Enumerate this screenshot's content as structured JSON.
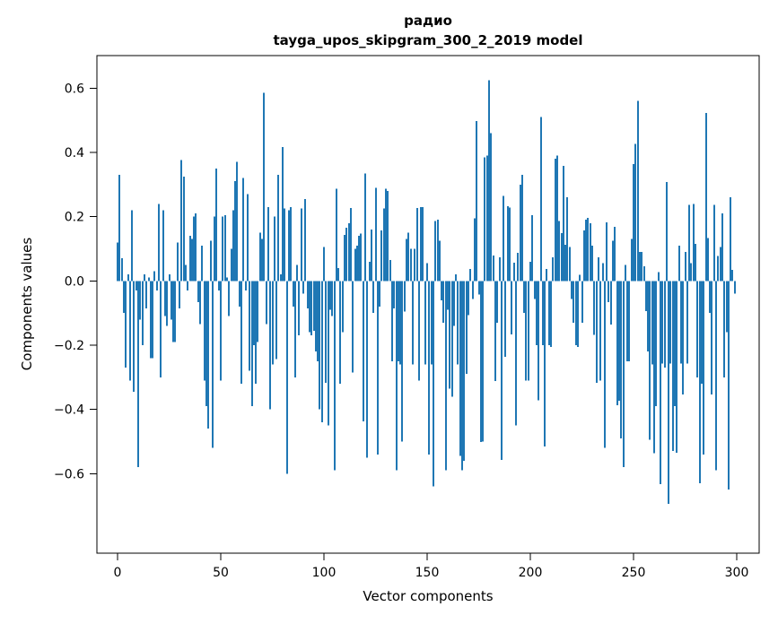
{
  "figure": {
    "title_line1": "радио",
    "title_line2": "tayga_upos_skipgram_300_2_2019 model",
    "xlabel": "Vector components",
    "ylabel": "Components values"
  },
  "chart_data": {
    "type": "bar",
    "title": "радио — tayga_upos_skipgram_300_2_2019 model",
    "xlabel": "Vector components",
    "ylabel": "Components values",
    "x_ticks": [
      0,
      50,
      100,
      150,
      200,
      250,
      300
    ],
    "y_ticks": [
      0.6,
      0.4,
      0.2,
      0.0,
      -0.2,
      -0.4,
      -0.6
    ],
    "xlim": [
      -10,
      311
    ],
    "ylim": [
      -0.85,
      0.7
    ],
    "grid": false,
    "legend": null,
    "bar_color": "#1f77b4",
    "n_components": 300,
    "values": [
      0.12,
      0.33,
      0.07,
      -0.1,
      -0.27,
      0.02,
      -0.31,
      0.22,
      -0.345,
      -0.03,
      -0.58,
      -0.12,
      -0.2,
      0.02,
      -0.085,
      0.01,
      -0.24,
      -0.24,
      0.03,
      -0.03,
      0.24,
      -0.3,
      0.22,
      -0.11,
      -0.14,
      0.02,
      -0.12,
      -0.19,
      -0.19,
      0.12,
      -0.085,
      0.376,
      0.325,
      0.05,
      -0.03,
      0.14,
      0.13,
      0.2,
      0.21,
      -0.066,
      -0.135,
      0.11,
      -0.31,
      -0.39,
      -0.46,
      0.125,
      -0.52,
      0.2,
      0.35,
      -0.03,
      -0.31,
      0.2,
      0.205,
      0.01,
      -0.11,
      0.1,
      0.22,
      0.31,
      0.37,
      -0.08,
      -0.32,
      0.32,
      -0.03,
      0.27,
      -0.28,
      -0.39,
      -0.2,
      -0.32,
      -0.19,
      0.15,
      0.13,
      0.585,
      -0.135,
      0.23,
      -0.4,
      -0.26,
      0.2,
      -0.243,
      0.33,
      0.02,
      0.417,
      0.225,
      -0.6,
      0.22,
      0.23,
      -0.08,
      -0.3,
      0.05,
      -0.17,
      0.225,
      -0.04,
      0.255,
      -0.085,
      -0.16,
      -0.17,
      -0.155,
      -0.22,
      -0.25,
      -0.4,
      -0.44,
      0.105,
      -0.317,
      -0.45,
      -0.09,
      -0.11,
      -0.59,
      0.287,
      0.04,
      -0.32,
      -0.16,
      0.143,
      0.166,
      0.18,
      0.227,
      -0.285,
      0.1,
      0.11,
      0.14,
      0.148,
      -0.438,
      0.335,
      -0.55,
      0.06,
      0.16,
      -0.1,
      0.29,
      -0.54,
      -0.08,
      0.157,
      0.225,
      0.287,
      0.28,
      0.065,
      -0.25,
      -0.085,
      -0.59,
      -0.25,
      -0.26,
      -0.5,
      -0.095,
      0.13,
      0.15,
      0.1,
      -0.26,
      0.1,
      0.227,
      -0.31,
      0.23,
      0.23,
      -0.26,
      0.055,
      -0.54,
      -0.26,
      -0.64,
      0.187,
      0.19,
      0.125,
      -0.06,
      -0.13,
      -0.59,
      -0.09,
      -0.335,
      -0.36,
      -0.14,
      0.02,
      -0.26,
      -0.545,
      -0.59,
      -0.56,
      -0.29,
      -0.107,
      0.037,
      -0.056,
      0.195,
      0.498,
      -0.042,
      -0.502,
      -0.5,
      0.385,
      0.39,
      0.625,
      0.46,
      0.079,
      -0.312,
      -0.13,
      0.074,
      -0.558,
      0.265,
      -0.237,
      0.233,
      0.228,
      -0.167,
      0.056,
      -0.45,
      0.088,
      0.3,
      0.33,
      -0.1,
      -0.31,
      -0.31,
      0.06,
      0.205,
      -0.056,
      -0.2,
      -0.372,
      0.51,
      -0.2,
      -0.516,
      0.037,
      -0.2,
      -0.205,
      0.074,
      0.38,
      0.39,
      0.186,
      0.149,
      0.358,
      0.112,
      0.26,
      0.105,
      -0.056,
      -0.13,
      -0.2,
      -0.205,
      0.019,
      -0.13,
      0.157,
      0.19,
      0.196,
      0.18,
      0.11,
      -0.168,
      -0.317,
      0.073,
      -0.31,
      0.055,
      -0.52,
      0.182,
      -0.066,
      -0.136,
      0.125,
      0.168,
      -0.387,
      -0.373,
      -0.49,
      -0.58,
      0.05,
      -0.25,
      -0.25,
      0.13,
      0.364,
      0.427,
      0.56,
      0.09,
      0.09,
      0.045,
      -0.094,
      -0.22,
      -0.494,
      -0.26,
      -0.536,
      -0.39,
      0.027,
      -0.633,
      -0.257,
      -0.27,
      0.308,
      -0.694,
      -0.257,
      -0.53,
      -0.39,
      -0.535,
      0.11,
      -0.257,
      -0.354,
      0.09,
      -0.257,
      0.236,
      0.055,
      0.24,
      0.115,
      -0.3,
      -0.63,
      -0.32,
      -0.54,
      0.523,
      0.134,
      -0.1,
      -0.354,
      0.236,
      -0.59,
      0.078,
      0.106,
      0.21,
      -0.3,
      -0.16,
      -0.65,
      0.26,
      0.035,
      -0.04
    ]
  }
}
